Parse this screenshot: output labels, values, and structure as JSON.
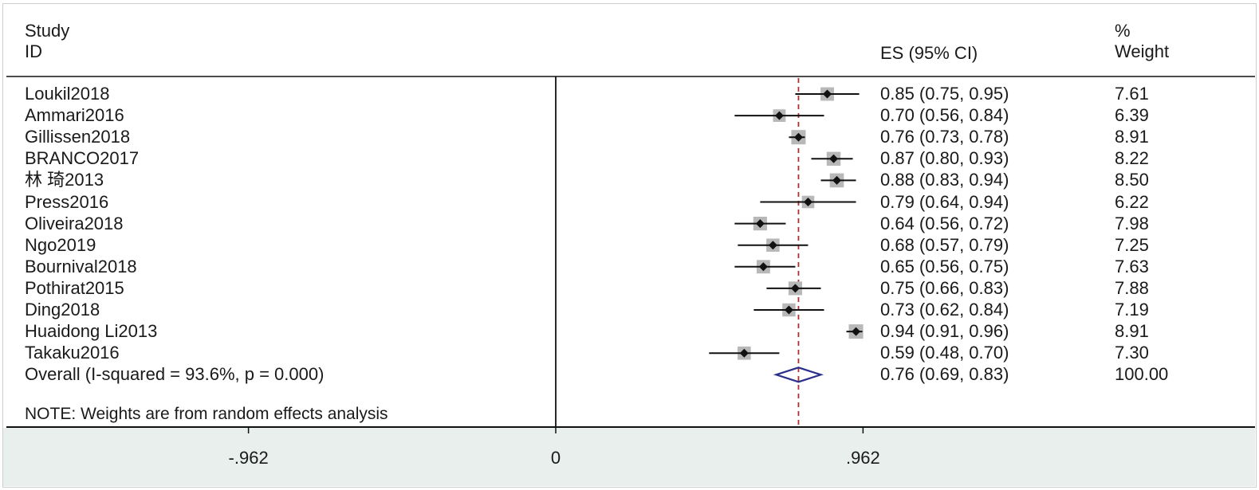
{
  "header": {
    "study_line1": "Study",
    "study_line2": "ID",
    "es_label": "ES (95% CI)",
    "weight_line1": "%",
    "weight_line2": "Weight"
  },
  "note": "NOTE: Weights are from random effects analysis",
  "colors": {
    "marker": "#111111",
    "weight_box": "#b8b8b8",
    "overall_diamond": "#2a2f8a",
    "reference_line": "#b03030",
    "axis_band": "#e9efec"
  },
  "chart_data": {
    "type": "forest",
    "xlim": [
      -1.06,
      1.28
    ],
    "ticks": [
      {
        "value": -0.962,
        "label": "-.962"
      },
      {
        "value": 0,
        "label": "0"
      },
      {
        "value": 0.962,
        "label": ".962"
      }
    ],
    "null_line": 0,
    "overall_line": 0.76,
    "studies": [
      {
        "label": "Loukil2018",
        "es": 0.85,
        "lo": 0.75,
        "hi": 0.95,
        "es_text": "0.85 (0.75, 0.95)",
        "weight": "7.61"
      },
      {
        "label": "Ammari2016",
        "es": 0.7,
        "lo": 0.56,
        "hi": 0.84,
        "es_text": "0.70 (0.56, 0.84)",
        "weight": "6.39"
      },
      {
        "label": "Gillissen2018",
        "es": 0.76,
        "lo": 0.73,
        "hi": 0.78,
        "es_text": "0.76 (0.73, 0.78)",
        "weight": "8.91"
      },
      {
        "label": "BRANCO2017",
        "es": 0.87,
        "lo": 0.8,
        "hi": 0.93,
        "es_text": "0.87 (0.80, 0.93)",
        "weight": "8.22"
      },
      {
        "label": "林 琦2013",
        "es": 0.88,
        "lo": 0.83,
        "hi": 0.94,
        "es_text": "0.88 (0.83, 0.94)",
        "weight": "8.50"
      },
      {
        "label": "Press2016",
        "es": 0.79,
        "lo": 0.64,
        "hi": 0.94,
        "es_text": "0.79 (0.64, 0.94)",
        "weight": "6.22"
      },
      {
        "label": "Oliveira2018",
        "es": 0.64,
        "lo": 0.56,
        "hi": 0.72,
        "es_text": "0.64 (0.56, 0.72)",
        "weight": "7.98"
      },
      {
        "label": "Ngo2019",
        "es": 0.68,
        "lo": 0.57,
        "hi": 0.79,
        "es_text": "0.68 (0.57, 0.79)",
        "weight": "7.25"
      },
      {
        "label": "Bournival2018",
        "es": 0.65,
        "lo": 0.56,
        "hi": 0.75,
        "es_text": "0.65 (0.56, 0.75)",
        "weight": "7.63"
      },
      {
        "label": "Pothirat2015",
        "es": 0.75,
        "lo": 0.66,
        "hi": 0.83,
        "es_text": "0.75 (0.66, 0.83)",
        "weight": "7.88"
      },
      {
        "label": "Ding2018",
        "es": 0.73,
        "lo": 0.62,
        "hi": 0.84,
        "es_text": "0.73 (0.62, 0.84)",
        "weight": "7.19"
      },
      {
        "label": "Huaidong Li2013",
        "es": 0.94,
        "lo": 0.91,
        "hi": 0.96,
        "es_text": "0.94 (0.91, 0.96)",
        "weight": "8.91"
      },
      {
        "label": "Takaku2016",
        "es": 0.59,
        "lo": 0.48,
        "hi": 0.7,
        "es_text": "0.59 (0.48, 0.70)",
        "weight": "7.30"
      }
    ],
    "overall": {
      "label": "Overall  (I-squared = 93.6%, p = 0.000)",
      "es": 0.76,
      "lo": 0.69,
      "hi": 0.83,
      "es_text": "0.76 (0.69, 0.83)",
      "weight": "100.00"
    }
  }
}
